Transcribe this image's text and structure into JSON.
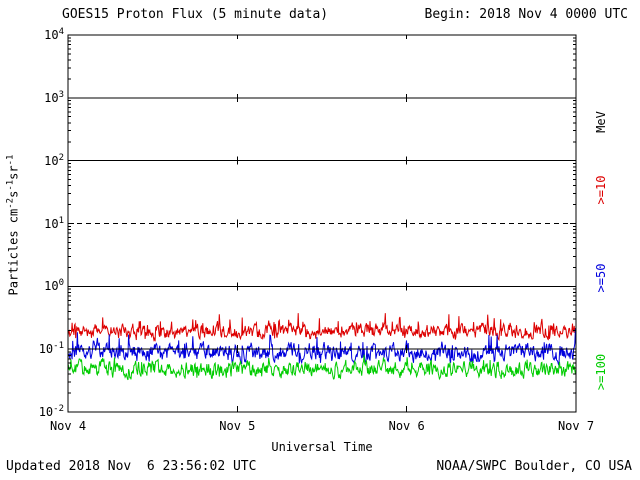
{
  "header": {
    "title": "GOES15 Proton Flux (5 minute data)",
    "begin": "Begin: 2018 Nov 4 0000 UTC"
  },
  "footer": {
    "updated": "Updated 2018 Nov  6 23:56:02 UTC",
    "credit": "NOAA/SWPC Boulder, CO USA"
  },
  "legend": {
    "unit": "MeV",
    "items": [
      {
        "label": ">=10",
        "color": "#dd0000"
      },
      {
        "label": ">=50",
        "color": "#0000dd"
      },
      {
        "label": ">=100",
        "color": "#00cc00"
      }
    ]
  },
  "axes": {
    "x": {
      "title": "Universal Time",
      "ticks": [
        "Nov 4",
        "Nov 5",
        "Nov 6",
        "Nov 7"
      ]
    },
    "y": {
      "scale": "log",
      "tick_exponents": [
        4,
        3,
        2,
        1,
        0,
        -1,
        -2
      ],
      "label_parts": [
        {
          "t": "Particles cm"
        },
        {
          "sup": "-2"
        },
        {
          "t": "s"
        },
        {
          "sup": "-1"
        },
        {
          "t": "sr"
        },
        {
          "sup": "-1"
        }
      ]
    }
  },
  "chart_data": {
    "type": "line",
    "title": "GOES15 Proton Flux (5 minute data)",
    "xlabel": "Universal Time",
    "ylabel": "Particles cm^-2 s^-1 sr^-1",
    "x_range": [
      "2018 Nov 4 0000 UTC",
      "2018 Nov 7 0000 UTC"
    ],
    "x_ticks": [
      "Nov 4",
      "Nov 5",
      "Nov 6",
      "Nov 7"
    ],
    "y_scale": "log",
    "ylim": [
      0.01,
      10000
    ],
    "grid_vertical_days": [
      "Nov 5",
      "Nov 6"
    ],
    "reference_lines": [
      {
        "value": 1000,
        "style": "solid"
      },
      {
        "value": 100,
        "style": "solid"
      },
      {
        "value": 10,
        "style": "dashed"
      },
      {
        "value": 1,
        "style": "solid"
      },
      {
        "value": 0.1,
        "style": "solid"
      }
    ],
    "cadence_minutes": 5,
    "points_per_day": 288,
    "days": 3,
    "series": [
      {
        "key": "ge10",
        "name": ">=10 MeV",
        "color": "#dd0000",
        "approx_mean": 0.19,
        "approx_min": 0.12,
        "approx_max": 0.4,
        "log10_base": -0.72,
        "log10_amp": 0.1,
        "spike_prob": 0.12,
        "spike_log10_amp": 0.2,
        "seed": 101
      },
      {
        "key": "ge50",
        "name": ">=50 MeV",
        "color": "#0000dd",
        "approx_mean": 0.09,
        "approx_min": 0.05,
        "approx_max": 0.25,
        "log10_base": -1.05,
        "log10_amp": 0.12,
        "spike_prob": 0.1,
        "spike_log10_amp": 0.22,
        "seed": 202
      },
      {
        "key": "ge100",
        "name": ">=100 MeV",
        "color": "#00cc00",
        "approx_mean": 0.05,
        "approx_min": 0.03,
        "approx_max": 0.09,
        "log10_base": -1.32,
        "log10_amp": 0.11,
        "spike_prob": 0.07,
        "spike_log10_amp": 0.1,
        "seed": 303
      }
    ]
  }
}
